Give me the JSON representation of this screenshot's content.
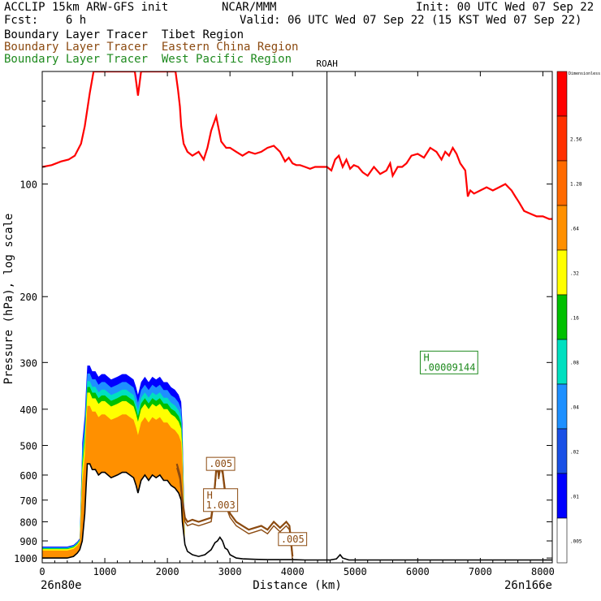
{
  "header": {
    "model": "ACCLIP 15km ARW-GFS init",
    "org": "NCAR/MMM",
    "init": "Init: 00 UTC Wed 07 Sep 22",
    "fcst": "Fcst:    6 h",
    "valid": "Valid: 06 UTC Wed 07 Sep 22 (15 KST Wed 07 Sep 22)"
  },
  "legend": [
    {
      "prefix": "Boundary Layer Tracer",
      "region": "Tibet Region",
      "color": "#000000"
    },
    {
      "prefix": "Boundary Layer Tracer",
      "region": "Eastern China Region",
      "color": "#8b4a10"
    },
    {
      "prefix": "Boundary Layer Tracer",
      "region": "West Pacific Region",
      "color": "#1e8a1e"
    }
  ],
  "chart_data": {
    "type": "cross-section",
    "xlabel": "Distance (km)",
    "ylabel": "Pressure (hPa), log scale",
    "x_start_label": "26n80e",
    "x_end_label": "26n166e",
    "xlim": [
      0,
      8150
    ],
    "ylim": [
      1030,
      50
    ],
    "yscale": "log",
    "xticks": [
      0,
      1000,
      2000,
      3000,
      4000,
      5000,
      6000,
      7000,
      8000
    ],
    "xtick_labels": [
      "0",
      "1000",
      "2000",
      "3000",
      "4000",
      "5000",
      "6000",
      "7000",
      "8000"
    ],
    "yticks": [
      100,
      200,
      300,
      400,
      500,
      600,
      700,
      800,
      900,
      1000
    ],
    "ytick_labels": [
      "100",
      "200",
      "300",
      "400",
      "500",
      "600",
      "700",
      "800",
      "900",
      "1000"
    ],
    "marker": {
      "label": "ROAH",
      "x": 4550
    },
    "colorbar": {
      "top_label": "Dimensionless",
      "levels": [
        ".005",
        ".01",
        ".02",
        ".04",
        ".08",
        ".16",
        ".32",
        ".64",
        "1.28",
        "2.56"
      ],
      "colors": [
        "#ffffff",
        "#0000ff",
        "#1a50e6",
        "#1e90ff",
        "#00e0c0",
        "#00c000",
        "#ffff00",
        "#ff9000",
        "#ff6a00",
        "#ff3000",
        "#ff0000"
      ]
    },
    "annotations": [
      {
        "text": ".005",
        "x": 2850,
        "p": 560,
        "color": "#8b4a10"
      },
      {
        "text": "H",
        "text2": "1.003",
        "x": 2850,
        "p": 700,
        "color": "#8b4a10"
      },
      {
        "text": ".005",
        "x": 4000,
        "p": 890,
        "color": "#8b4a10"
      },
      {
        "text": "H",
        "text2": ".00009144",
        "x": 6500,
        "p": 300,
        "color": "#1e8a1e"
      }
    ],
    "tropopause_line": {
      "color": "#ff0000",
      "x": [
        0,
        150,
        300,
        420,
        520,
        620,
        680,
        760,
        820,
        880,
        940,
        1000,
        1100,
        1200,
        1300,
        1380,
        1480,
        1530,
        1580,
        1640,
        1720,
        1800,
        1900,
        1980,
        2060,
        2130,
        2170,
        2200,
        2220,
        2260,
        2320,
        2400,
        2500,
        2580,
        2640,
        2700,
        2780,
        2860,
        2940,
        3000,
        3100,
        3200,
        3300,
        3400,
        3500,
        3600,
        3700,
        3800,
        3880,
        3940,
        4000,
        4060,
        4120,
        4200,
        4280,
        4360,
        4440,
        4550,
        4620,
        4680,
        4740,
        4800,
        4860,
        4920,
        4980,
        5050,
        5120,
        5200,
        5300,
        5400,
        5500,
        5560,
        5600,
        5680,
        5750,
        5820,
        5900,
        6000,
        6100,
        6200,
        6300,
        6380,
        6440,
        6500,
        6560,
        6620,
        6680,
        6720,
        6760,
        6800,
        6840,
        6900,
        7000,
        7100,
        7200,
        7300,
        7400,
        7500,
        7560,
        7620,
        7700,
        7800,
        7900,
        8000,
        8100,
        8150
      ],
      "p": [
        90,
        89,
        87,
        86,
        84,
        78,
        70,
        57,
        50,
        50,
        50,
        50,
        50,
        50,
        50,
        50,
        50,
        58,
        50,
        50,
        50,
        50,
        50,
        50,
        50,
        50,
        56,
        62,
        70,
        78,
        82,
        84,
        82,
        86,
        80,
        72,
        66,
        77,
        80,
        80,
        82,
        84,
        82,
        83,
        82,
        80,
        79,
        82,
        87,
        85,
        88,
        89,
        89,
        90,
        91,
        90,
        90,
        90,
        92,
        86,
        84,
        90,
        86,
        91,
        89,
        90,
        93,
        95,
        90,
        94,
        92,
        88,
        95,
        90,
        90,
        88,
        84,
        83,
        85,
        80,
        82,
        86,
        82,
        84,
        80,
        83,
        88,
        90,
        92,
        108,
        104,
        106,
        104,
        102,
        104,
        102,
        100,
        104,
        108,
        112,
        118,
        120,
        122,
        122,
        124,
        124
      ]
    },
    "tibet_tracer_top": {
      "color": "#000000",
      "x": [
        0,
        100,
        200,
        300,
        400,
        500,
        560,
        600,
        640,
        680,
        700,
        720,
        760,
        800,
        850,
        900,
        950,
        1000,
        1100,
        1200,
        1280,
        1340,
        1400,
        1460,
        1500,
        1530,
        1580,
        1640,
        1700,
        1760,
        1820,
        1880,
        1940,
        2000,
        2060,
        2120,
        2180,
        2220,
        2240,
        2280,
        2320,
        2400,
        2500,
        2600,
        2700,
        2760,
        2800,
        2840,
        2880,
        2920,
        2960,
        3000,
        3100,
        3200,
        3400,
        3600,
        3800,
        4000,
        4200,
        4400,
        4600,
        4700,
        4760,
        4800,
        4900,
        5000,
        5500,
        6000,
        6500,
        7000,
        7500,
        8000,
        8150
      ],
      "p": [
        1000,
        1000,
        1000,
        1000,
        1000,
        990,
        970,
        950,
        900,
        760,
        650,
        560,
        560,
        580,
        580,
        600,
        590,
        590,
        610,
        600,
        590,
        590,
        600,
        610,
        640,
        670,
        620,
        600,
        620,
        600,
        610,
        600,
        620,
        620,
        640,
        650,
        670,
        700,
        800,
        920,
        960,
        980,
        990,
        980,
        950,
        910,
        900,
        880,
        900,
        940,
        950,
        980,
        1000,
        1005,
        1008,
        1010,
        1010,
        1010,
        1012,
        1012,
        1012,
        1005,
        980,
        1000,
        1012,
        1012,
        1012,
        1012,
        1012,
        1012,
        1012,
        1012,
        1012
      ]
    },
    "eastchina_tracer_top": {
      "color": "#8b4a10",
      "x": [
        2150,
        2200,
        2240,
        2280,
        2320,
        2400,
        2500,
        2600,
        2700,
        2740,
        2780,
        2800,
        2820,
        2850,
        2880,
        2900,
        2950,
        3000,
        3100,
        3200,
        3300,
        3400,
        3500,
        3600,
        3700,
        3800,
        3900,
        3950,
        4000
      ],
      "p": [
        560,
        600,
        700,
        780,
        800,
        790,
        800,
        790,
        780,
        700,
        580,
        560,
        600,
        560,
        580,
        620,
        720,
        760,
        800,
        820,
        840,
        830,
        820,
        840,
        800,
        830,
        800,
        820,
        990
      ]
    }
  }
}
